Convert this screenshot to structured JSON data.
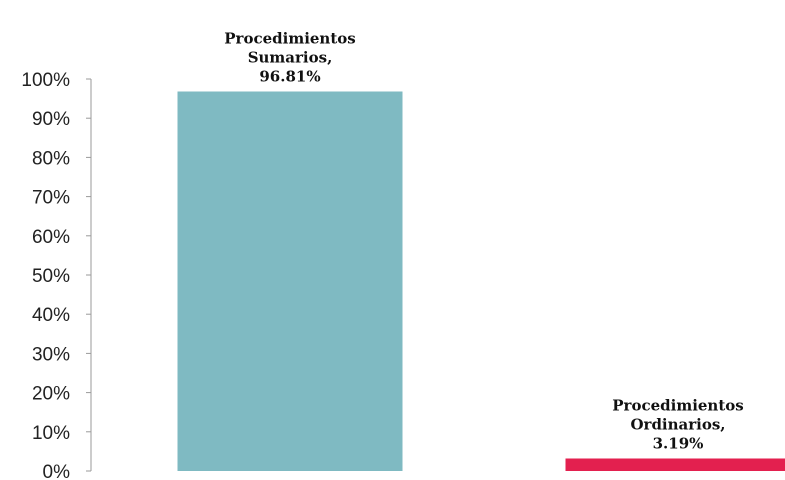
{
  "chart_data": {
    "type": "bar",
    "categories": [
      "Procedimientos Sumarios",
      "Procedimientos Ordinarios"
    ],
    "values": [
      96.81,
      3.19
    ],
    "colors": [
      "#7fbac2",
      "#e3204f"
    ],
    "data_labels": [
      [
        "Procedimientos",
        "Sumarios,",
        "96.81%"
      ],
      [
        "Procedimientos",
        "Ordinarios,",
        "3.19%"
      ]
    ],
    "y_ticks": [
      "0%",
      "10%",
      "20%",
      "30%",
      "40%",
      "50%",
      "60%",
      "70%",
      "80%",
      "90%",
      "100%"
    ],
    "ylim": [
      0,
      100
    ],
    "grid": false,
    "legend": "none"
  }
}
